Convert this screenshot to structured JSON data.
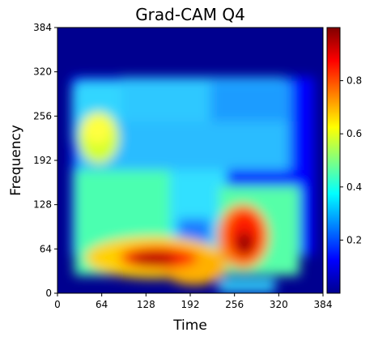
{
  "chart_data": {
    "type": "heatmap",
    "title": "Grad-CAM Q4",
    "xlabel": "Time",
    "ylabel": "Frequency",
    "xlim": [
      0,
      384
    ],
    "ylim": [
      0,
      384
    ],
    "x_ticks": [
      0,
      64,
      128,
      192,
      256,
      320,
      384
    ],
    "y_ticks": [
      0,
      64,
      128,
      192,
      256,
      320,
      384
    ],
    "colormap": "jet",
    "colorbar": {
      "range": [
        0,
        1
      ],
      "ticks": [
        0.2,
        0.4,
        0.6,
        0.8
      ]
    },
    "grid": false,
    "hotspots": [
      {
        "x": 144,
        "y": 48,
        "value": 0.95
      },
      {
        "x": 268,
        "y": 64,
        "value": 0.98
      },
      {
        "x": 262,
        "y": 112,
        "value": 0.82
      },
      {
        "x": 190,
        "y": 36,
        "value": 0.7
      },
      {
        "x": 60,
        "y": 228,
        "value": 0.6
      }
    ]
  }
}
